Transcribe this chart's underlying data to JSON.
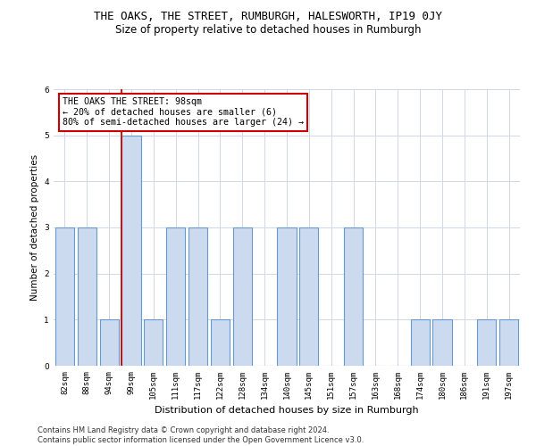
{
  "title": "THE OAKS, THE STREET, RUMBURGH, HALESWORTH, IP19 0JY",
  "subtitle": "Size of property relative to detached houses in Rumburgh",
  "xlabel": "Distribution of detached houses by size in Rumburgh",
  "ylabel": "Number of detached properties",
  "categories": [
    "82sqm",
    "88sqm",
    "94sqm",
    "99sqm",
    "105sqm",
    "111sqm",
    "117sqm",
    "122sqm",
    "128sqm",
    "134sqm",
    "140sqm",
    "145sqm",
    "151sqm",
    "157sqm",
    "163sqm",
    "168sqm",
    "174sqm",
    "180sqm",
    "186sqm",
    "191sqm",
    "197sqm"
  ],
  "values": [
    3,
    3,
    1,
    5,
    1,
    3,
    3,
    1,
    3,
    0,
    3,
    3,
    0,
    3,
    0,
    0,
    1,
    1,
    0,
    1,
    1
  ],
  "bar_color": "#ccdaf0",
  "bar_edgecolor": "#6699cc",
  "property_index": 3,
  "property_line_color": "#cc0000",
  "annotation_box_edgecolor": "#cc0000",
  "annotation_text": "THE OAKS THE STREET: 98sqm\n← 20% of detached houses are smaller (6)\n80% of semi-detached houses are larger (24) →",
  "annotation_fontsize": 7.2,
  "ylim": [
    0,
    6
  ],
  "yticks": [
    0,
    1,
    2,
    3,
    4,
    5,
    6
  ],
  "title_fontsize": 9,
  "subtitle_fontsize": 8.5,
  "xlabel_fontsize": 8,
  "ylabel_fontsize": 7.5,
  "tick_fontsize": 6.5,
  "footer_text": "Contains HM Land Registry data © Crown copyright and database right 2024.\nContains public sector information licensed under the Open Government Licence v3.0.",
  "footer_fontsize": 6,
  "background_color": "#ffffff",
  "grid_color": "#d0d8e8"
}
